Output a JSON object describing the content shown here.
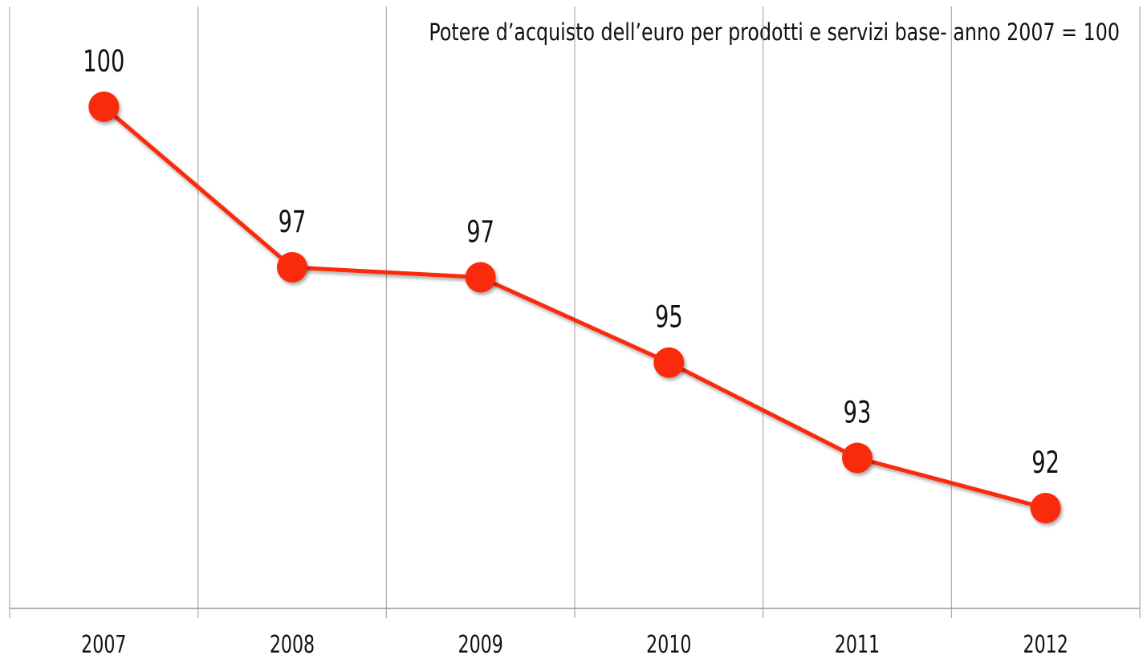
{
  "chart_data": {
    "type": "line",
    "title": "Potere d’acquisto dell’euro per prodotti e servizi base- anno 2007  = 100",
    "categories": [
      "2007",
      "2008",
      "2009",
      "2010",
      "2011",
      "2012"
    ],
    "series": [
      {
        "color": "#fa2a0a",
        "values": [
          100,
          96.8,
          96.6,
          94.9,
          93,
          92
        ],
        "value_labels": [
          "100",
          "97",
          "97",
          "95",
          "93",
          "92"
        ]
      }
    ],
    "ylim": [
      90,
      102
    ],
    "grid": true
  }
}
